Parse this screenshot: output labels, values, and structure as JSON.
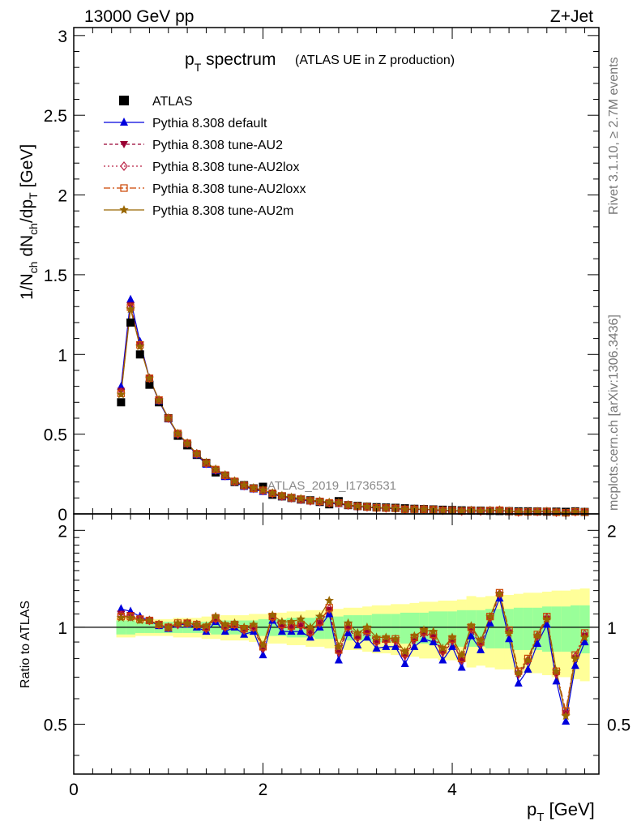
{
  "header": {
    "energy": "13000 GeV pp",
    "process": "Z+Jet"
  },
  "side_labels": {
    "rivet": "Rivet 3.1.10, ≥ 2.7M events",
    "mcplots": "mcplots.cern.ch [arXiv:1306.3436]"
  },
  "watermark": "ATLAS_2019_I1736531",
  "chart_data": [
    {
      "type": "line",
      "panel": "main",
      "title": "p_T spectrum",
      "title_main": "p",
      "title_sub": "T",
      "title_rest": " spectrum",
      "title_note": "(ATLAS UE in Z production)",
      "ylabel": "1/N_ch dN_ch/dp_T [GeV]",
      "ylim": [
        0,
        3.05
      ],
      "yticks": [
        0,
        0.5,
        1,
        1.5,
        2,
        2.5,
        3
      ],
      "ytick_labels": [
        "0",
        "0.5",
        "1",
        "1.5",
        "2",
        "2.5",
        "3"
      ],
      "xlim": [
        0,
        5.55
      ],
      "legend_position": "top-left",
      "data_series": {
        "name": "ATLAS",
        "color": "#000000",
        "x": [
          0.5,
          0.6,
          0.7,
          0.8,
          0.9,
          1.0,
          1.1,
          1.2,
          1.3,
          1.4,
          1.5,
          1.6,
          1.7,
          1.8,
          1.9,
          2.0,
          2.1,
          2.2,
          2.3,
          2.4,
          2.5,
          2.6,
          2.7,
          2.8,
          2.9,
          3.0,
          3.1,
          3.2,
          3.3,
          3.4,
          3.5,
          3.6,
          3.7,
          3.8,
          3.9,
          4.0,
          4.1,
          4.2,
          4.3,
          4.4,
          4.5,
          4.6,
          4.7,
          4.8,
          4.9,
          5.0,
          5.1,
          5.2,
          5.3,
          5.4
        ],
        "y": [
          0.7,
          1.2,
          1.0,
          0.81,
          0.7,
          0.6,
          0.49,
          0.43,
          0.37,
          0.32,
          0.26,
          0.24,
          0.2,
          0.18,
          0.16,
          0.17,
          0.12,
          0.11,
          0.1,
          0.09,
          0.085,
          0.075,
          0.06,
          0.08,
          0.055,
          0.05,
          0.045,
          0.042,
          0.04,
          0.038,
          0.035,
          0.032,
          0.03,
          0.028,
          0.026,
          0.024,
          0.022,
          0.021,
          0.02,
          0.019,
          0.018,
          0.017,
          0.016,
          0.016,
          0.015,
          0.014,
          0.014,
          0.013,
          0.016,
          0.012
        ]
      },
      "series": [
        {
          "name": "Pythia 8.308 default",
          "color": "#0000dd",
          "marker": "triangle-up",
          "dash": "solid",
          "ratio": [
            1.14,
            1.12,
            1.08,
            1.05,
            1.01,
            0.99,
            1.02,
            1.02,
            1.0,
            0.97,
            1.04,
            0.97,
            1.0,
            0.95,
            0.97,
            0.82,
            1.05,
            0.97,
            0.97,
            0.97,
            0.93,
            1.0,
            1.1,
            0.79,
            0.96,
            0.88,
            0.93,
            0.86,
            0.87,
            0.87,
            0.77,
            0.87,
            0.92,
            0.9,
            0.79,
            0.87,
            0.75,
            0.94,
            0.85,
            1.03,
            1.23,
            0.92,
            0.67,
            0.74,
            0.89,
            1.02,
            0.68,
            0.51,
            0.76,
            0.9
          ]
        },
        {
          "name": "Pythia 8.308 tune-AU2",
          "color": "#990033",
          "marker": "triangle-down",
          "dash": "4,3",
          "ratio": [
            1.1,
            1.09,
            1.06,
            1.05,
            1.02,
            1.0,
            1.02,
            1.03,
            1.01,
            0.99,
            1.06,
            1.0,
            1.01,
            0.98,
            0.99,
            0.86,
            1.07,
            1.0,
            1.0,
            1.01,
            0.96,
            1.03,
            1.13,
            0.83,
            0.99,
            0.92,
            0.96,
            0.9,
            0.9,
            0.9,
            0.81,
            0.91,
            0.95,
            0.93,
            0.83,
            0.9,
            0.79,
            0.98,
            0.88,
            1.06,
            1.26,
            0.96,
            0.71,
            0.78,
            0.93,
            1.06,
            0.71,
            0.54,
            0.8,
            0.94
          ]
        },
        {
          "name": "Pythia 8.308 tune-AU2lox",
          "color": "#bb2244",
          "marker": "diamond-open",
          "dash": "2,3",
          "ratio": [
            1.09,
            1.08,
            1.06,
            1.05,
            1.02,
            1.0,
            1.02,
            1.03,
            1.02,
            0.99,
            1.06,
            1.0,
            1.02,
            0.98,
            1.0,
            0.86,
            1.07,
            1.01,
            1.0,
            1.01,
            0.96,
            1.03,
            1.14,
            0.84,
            1.0,
            0.93,
            0.97,
            0.9,
            0.91,
            0.91,
            0.82,
            0.92,
            0.96,
            0.94,
            0.84,
            0.91,
            0.79,
            0.99,
            0.89,
            1.07,
            1.27,
            0.97,
            0.72,
            0.79,
            0.94,
            1.07,
            0.72,
            0.54,
            0.81,
            0.95
          ]
        },
        {
          "name": "Pythia 8.308 tune-AU2loxx",
          "color": "#cc4400",
          "marker": "square-open",
          "dash": "8,3,2,3",
          "ratio": [
            1.08,
            1.08,
            1.06,
            1.05,
            1.02,
            1.0,
            1.03,
            1.03,
            1.02,
            1.0,
            1.07,
            1.01,
            1.02,
            0.99,
            1.0,
            0.87,
            1.08,
            1.02,
            1.01,
            1.02,
            0.97,
            1.04,
            1.15,
            0.85,
            1.01,
            0.94,
            0.98,
            0.91,
            0.92,
            0.92,
            0.83,
            0.93,
            0.97,
            0.95,
            0.85,
            0.92,
            0.8,
            1.0,
            0.9,
            1.08,
            1.28,
            0.98,
            0.73,
            0.8,
            0.95,
            1.08,
            0.73,
            0.55,
            0.82,
            0.96
          ]
        },
        {
          "name": "Pythia 8.308 tune-AU2m",
          "color": "#996600",
          "marker": "star",
          "dash": "solid",
          "ratio": [
            1.07,
            1.07,
            1.05,
            1.05,
            1.02,
            1.0,
            1.03,
            1.03,
            1.02,
            1.01,
            1.08,
            1.02,
            1.03,
            1.0,
            1.02,
            0.88,
            1.09,
            1.04,
            1.04,
            1.06,
            1.0,
            1.08,
            1.21,
            0.87,
            1.03,
            0.96,
            1.0,
            0.93,
            0.93,
            0.92,
            0.84,
            0.94,
            0.98,
            0.97,
            0.86,
            0.93,
            0.82,
            1.01,
            0.91,
            1.08,
            1.27,
            0.96,
            0.72,
            0.79,
            0.94,
            1.06,
            0.73,
            0.53,
            0.8,
            0.93
          ]
        }
      ]
    },
    {
      "type": "line",
      "panel": "ratio",
      "ylabel": "Ratio to ATLAS",
      "xlabel": "p_T [GeV]",
      "xlabel_main": "p",
      "xlabel_sub": "T",
      "xlabel_rest": " [GeV]",
      "ylim": [
        0.35,
        2.25
      ],
      "yticks": [
        0.5,
        1,
        2
      ],
      "ytick_labels": [
        "0.5",
        "1",
        "2"
      ],
      "xlim": [
        0,
        5.55
      ],
      "xticks": [
        0,
        2,
        4
      ],
      "xtick_labels": [
        "0",
        "2",
        "4"
      ],
      "band_inner": [
        0.05,
        0.05,
        0.04,
        0.04,
        0.04,
        0.04,
        0.04,
        0.04,
        0.04,
        0.04,
        0.05,
        0.05,
        0.05,
        0.05,
        0.05,
        0.06,
        0.06,
        0.06,
        0.07,
        0.07,
        0.07,
        0.08,
        0.08,
        0.08,
        0.09,
        0.09,
        0.09,
        0.1,
        0.1,
        0.1,
        0.11,
        0.11,
        0.11,
        0.12,
        0.12,
        0.12,
        0.13,
        0.13,
        0.13,
        0.14,
        0.14,
        0.14,
        0.15,
        0.15,
        0.15,
        0.16,
        0.16,
        0.16,
        0.17,
        0.17
      ],
      "band_outer": [
        0.07,
        0.07,
        0.06,
        0.06,
        0.06,
        0.06,
        0.07,
        0.07,
        0.07,
        0.08,
        0.08,
        0.09,
        0.09,
        0.09,
        0.1,
        0.1,
        0.11,
        0.11,
        0.12,
        0.12,
        0.13,
        0.13,
        0.14,
        0.14,
        0.15,
        0.15,
        0.16,
        0.17,
        0.17,
        0.18,
        0.18,
        0.19,
        0.2,
        0.2,
        0.21,
        0.21,
        0.22,
        0.25,
        0.24,
        0.25,
        0.26,
        0.26,
        0.27,
        0.28,
        0.28,
        0.29,
        0.3,
        0.3,
        0.31,
        0.32
      ]
    }
  ]
}
